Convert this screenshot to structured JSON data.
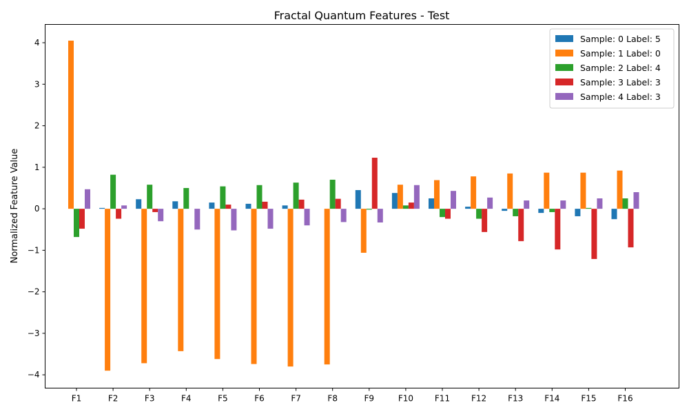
{
  "chart_data": {
    "type": "bar",
    "title": "Fractal Quantum Features - Test",
    "xlabel": "",
    "ylabel": "Normalized Feature Value",
    "categories": [
      "F1",
      "F2",
      "F3",
      "F4",
      "F5",
      "F6",
      "F7",
      "F8",
      "F9",
      "F10",
      "F11",
      "F12",
      "F13",
      "F14",
      "F15",
      "F16"
    ],
    "ylim": [
      -4.32,
      4.44
    ],
    "yticks": [
      -4,
      -3,
      -2,
      -1,
      0,
      1,
      2,
      3,
      4
    ],
    "grid": false,
    "legend_position": "top-right",
    "series": [
      {
        "name": "Sample: 0 Label: 5",
        "color": "#1f77b4",
        "values": [
          0.0,
          0.02,
          0.23,
          0.18,
          0.15,
          0.12,
          0.08,
          0.0,
          0.45,
          0.38,
          0.25,
          0.05,
          -0.05,
          -0.1,
          -0.18,
          -0.25
        ]
      },
      {
        "name": "Sample: 1 Label: 0",
        "color": "#ff7f0e",
        "values": [
          4.05,
          -3.9,
          -3.72,
          -3.43,
          -3.62,
          -3.74,
          -3.8,
          -3.75,
          -1.06,
          0.58,
          0.69,
          0.78,
          0.85,
          0.87,
          0.87,
          0.92
        ]
      },
      {
        "name": "Sample: 2 Label: 4",
        "color": "#2ca02c",
        "values": [
          -0.68,
          0.82,
          0.58,
          0.5,
          0.54,
          0.57,
          0.63,
          0.7,
          -0.02,
          0.08,
          -0.2,
          -0.24,
          -0.18,
          -0.08,
          0.02,
          0.25
        ]
      },
      {
        "name": "Sample: 3 Label: 3",
        "color": "#d62728",
        "values": [
          -0.48,
          -0.24,
          -0.08,
          0.0,
          0.1,
          0.17,
          0.22,
          0.24,
          1.23,
          0.15,
          -0.24,
          -0.56,
          -0.78,
          -0.98,
          -1.21,
          -0.93
        ]
      },
      {
        "name": "Sample: 4 Label: 3",
        "color": "#9467bd",
        "values": [
          0.47,
          0.08,
          -0.3,
          -0.5,
          -0.52,
          -0.48,
          -0.4,
          -0.32,
          -0.33,
          0.57,
          0.43,
          0.27,
          0.2,
          0.2,
          0.25,
          0.4
        ]
      }
    ]
  }
}
